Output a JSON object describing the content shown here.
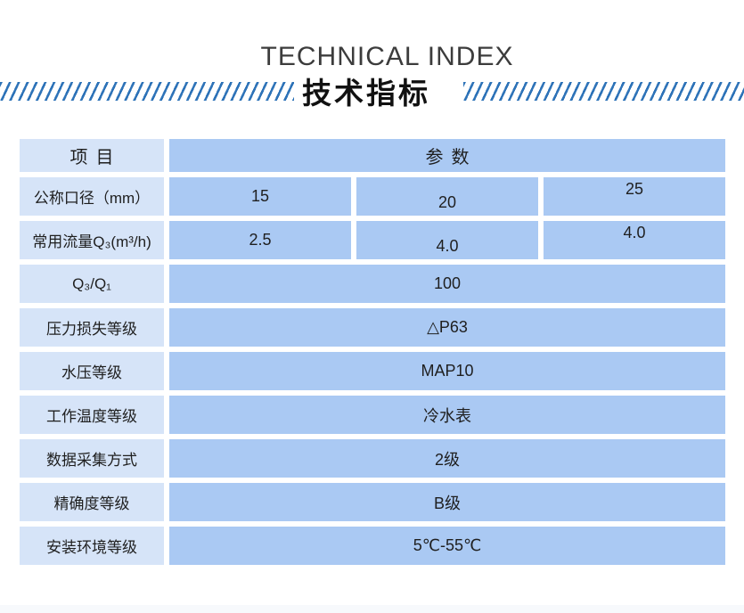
{
  "header": {
    "title_en": "TECHNICAL INDEX",
    "title_zh": "技术指标"
  },
  "colors": {
    "stripe_blue": "#2e73b8",
    "label_cell_bg": "#d6e4f8",
    "value_cell_bg": "#aac9f3",
    "text_dark": "#1f1f1f",
    "title_en_color": "#3c3c3c",
    "footer_strip": "#f7f9fc"
  },
  "table": {
    "item_header": "项目",
    "param_header": "参数",
    "rows": [
      {
        "label": "公称口径（mm）",
        "values": [
          "15",
          "20",
          "25"
        ]
      },
      {
        "label": "常用流量Q₃(m³/h)",
        "values": [
          "2.5",
          "4.0",
          "4.0"
        ]
      },
      {
        "label": "Q₃/Q₁",
        "values": [
          "100"
        ]
      },
      {
        "label": "压力损失等级",
        "values": [
          "△P63"
        ]
      },
      {
        "label": "水压等级",
        "values": [
          "MAP10"
        ]
      },
      {
        "label": "工作温度等级",
        "values": [
          "冷水表"
        ]
      },
      {
        "label": "数据采集方式",
        "values": [
          "2级"
        ]
      },
      {
        "label": "精确度等级",
        "values": [
          "B级"
        ]
      },
      {
        "label": "安装环境等级",
        "values": [
          "5℃-55℃"
        ]
      }
    ]
  }
}
